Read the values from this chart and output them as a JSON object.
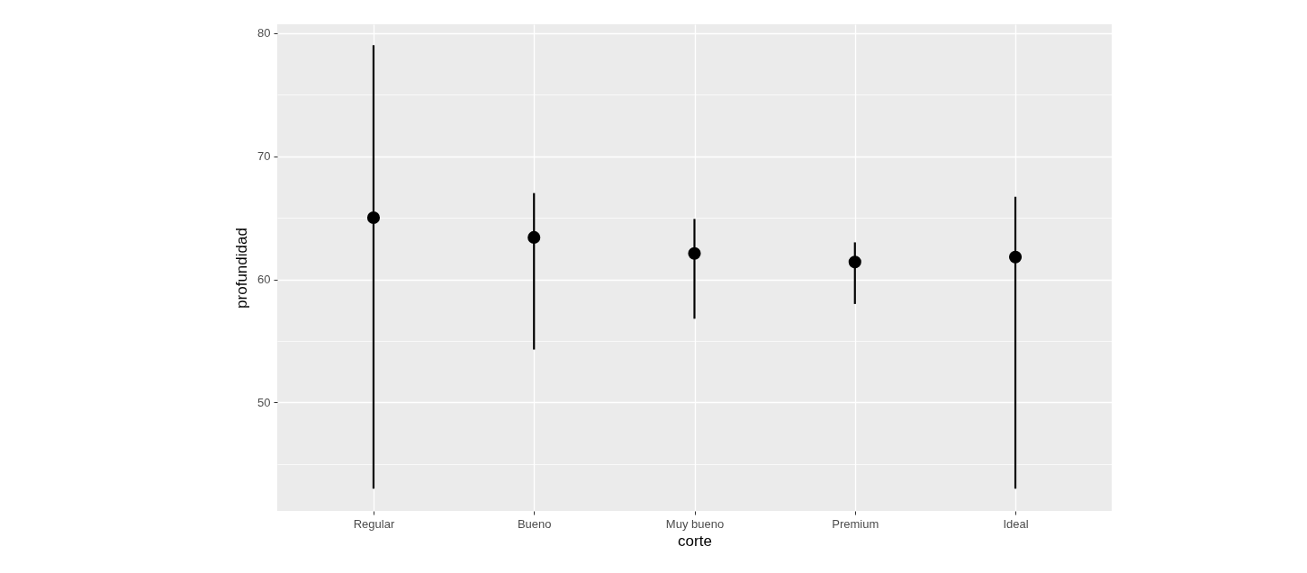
{
  "chart_data": {
    "type": "scatter",
    "xlabel": "corte",
    "ylabel": "profundidad",
    "categories": [
      "Regular",
      "Bueno",
      "Muy bueno",
      "Premium",
      "Ideal"
    ],
    "values": [
      65.0,
      63.4,
      62.1,
      61.4,
      61.8
    ],
    "errors": [
      [
        43.0,
        79.0
      ],
      [
        54.3,
        67.0
      ],
      [
        56.8,
        64.9
      ],
      [
        58.0,
        63.0
      ],
      [
        43.0,
        66.7
      ]
    ],
    "color": "#000000",
    "marker": "circle",
    "ylim": [
      41.2,
      80.7
    ],
    "yticks": [
      {
        "value": 45,
        "label": null
      },
      50,
      {
        "value": 55,
        "label": null
      },
      60,
      {
        "value": 65,
        "label": null
      },
      70,
      {
        "value": 75,
        "label": null
      },
      80
    ],
    "grid": true
  }
}
